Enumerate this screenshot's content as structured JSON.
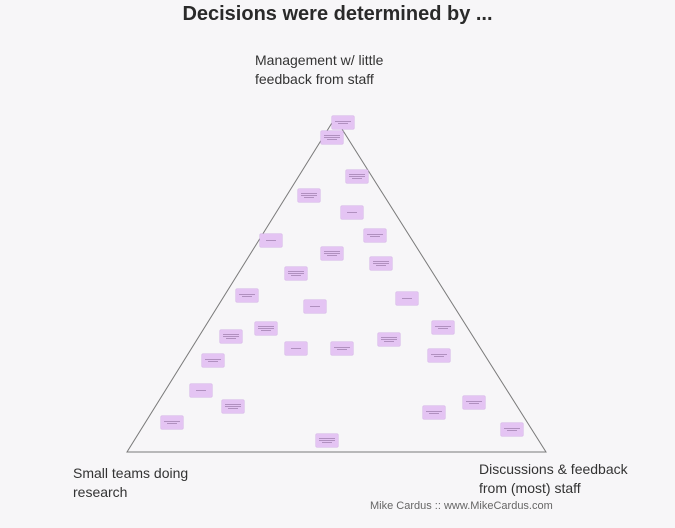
{
  "title": "Decisions were determined by ...",
  "vertices": {
    "top": [
      "Management w/ little",
      "feedback from staff"
    ],
    "left": [
      "Small teams doing",
      "research"
    ],
    "right": [
      "Discussions & feedback",
      "from (most) staff"
    ]
  },
  "credit": "Mike Cardus :: www.MikeCardus.com",
  "colors": {
    "note": "#e4c4f3",
    "triangle": "#7a7a7a",
    "background": "#f7f6f8"
  }
}
